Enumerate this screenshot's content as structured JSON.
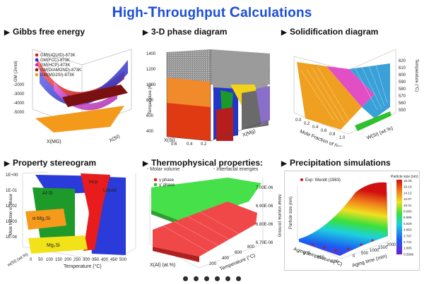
{
  "page": {
    "title_parts": [
      {
        "cap": "H",
        "rest": "igh-"
      },
      {
        "cap": "T",
        "rest": "hroughput "
      },
      {
        "cap": "C",
        "rest": "alculations"
      }
    ]
  },
  "panels": {
    "gibbs": {
      "title": "Gibbs free energy",
      "legend": [
        "GM(LIQUID)-873K",
        "GM(FCC)-873K",
        "GM(HCP)-873K",
        "GM(DIAMOND)-873K",
        "GM(MG2SI)-873K"
      ],
      "legend_colors": [
        "#e02020",
        "#2b2bd6",
        "#c030c0",
        "#8a1a1a",
        "#f39a1a"
      ],
      "y_axis": "GM (J/mol)",
      "y_ticks": [
        "-2000",
        "-3000",
        "-4000",
        "-5000"
      ],
      "x_axis": "X(MG)",
      "z_axis": "X(SI)",
      "x_ticks": [
        "0.0",
        "0.2",
        "0.4",
        "0.6",
        "0.8",
        "1.0"
      ],
      "z_ticks": [
        "0.0",
        "0.2",
        "0.4",
        "0.6"
      ]
    },
    "phase3d": {
      "title": "3-D phase diagram",
      "y_axis": "Temperature (K)",
      "y_ticks": [
        "1400",
        "1200",
        "1000",
        "800",
        "600",
        "400"
      ],
      "x_axis": "X(Si)",
      "z_axis": "X(Mg)",
      "x_ticks": [
        "0.6",
        "0.4",
        "0.2"
      ],
      "z_ticks": [
        "0.2",
        "0.4",
        "0.6",
        "0.8",
        "1.0"
      ]
    },
    "solidification": {
      "title": "Solidification diagram",
      "right_axis": "Temperature (°C)",
      "right_ticks": [
        "620",
        "610",
        "600",
        "590",
        "580",
        "570",
        "560",
        "550"
      ],
      "x_axis": "Mole Fraction of Solid",
      "x_ticks": [
        "0.0",
        "0.2",
        "0.4",
        "0.6",
        "0.8",
        "1.0"
      ],
      "z_axis": "W(Si) (wt.%)",
      "z_ticks": [
        "0.2",
        "0.4",
        "0.6",
        "0.8",
        "1.0"
      ]
    },
    "stereogram": {
      "title": "Property stereogram",
      "y_axis": "Mole fraction of phase",
      "y_ticks": [
        "1E+00",
        "1E-01",
        "1E-02",
        "1E-03",
        "1E-04"
      ],
      "x_axis": "Temperature (°C)",
      "x_ticks": [
        "0",
        "50",
        "100",
        "150",
        "200",
        "250",
        "300",
        "350",
        "400",
        "450",
        "500"
      ],
      "z_axis": "w(Si) (wt.%)",
      "labels": [
        "Hcp",
        "Liquid",
        "Al-Si",
        "α-Mg₂Si",
        "Mg₂Si"
      ]
    },
    "thermo": {
      "title": "Thermophysical properties:",
      "sub_left": "- Molar volume",
      "sub_right": "- Interfacial energies",
      "legend": [
        "γ phase",
        "γ' phase"
      ],
      "legend_colors": [
        "#e02020",
        "#2fbf2f"
      ],
      "right_axis": "Molar volume (m³/mol)",
      "right_ticks": [
        "7.00E-06",
        "6.90E-06",
        "6.80E-06",
        "6.70E-06"
      ],
      "x_axis": "X(Al) (at.%)",
      "z_axis": "Temperature (°C)",
      "z_ticks": [
        "200",
        "400",
        "600",
        "800"
      ]
    },
    "precip": {
      "title": "Precipitation simulations",
      "legend": [
        "Exp: Wendt (1983)"
      ],
      "colorbar_title": "Particle size (nm)",
      "colorbar_ticks": [
        "18.25",
        "16.19",
        "14.13",
        "12.07",
        "10.01",
        "8.083",
        "6.995",
        "5.929",
        "4.863",
        "3.797",
        "2.731",
        "1.665",
        "0.5996"
      ],
      "y_axis": "Particle size (nm)",
      "x_axis": "Aging time (min)",
      "z_axis": "Aging temperature (°C)",
      "x_ticks": [
        "0",
        "500",
        "1000",
        "1500",
        "2000"
      ],
      "z_ticks": [
        "500",
        "550",
        "600"
      ]
    }
  },
  "pager": {
    "count": 6
  }
}
